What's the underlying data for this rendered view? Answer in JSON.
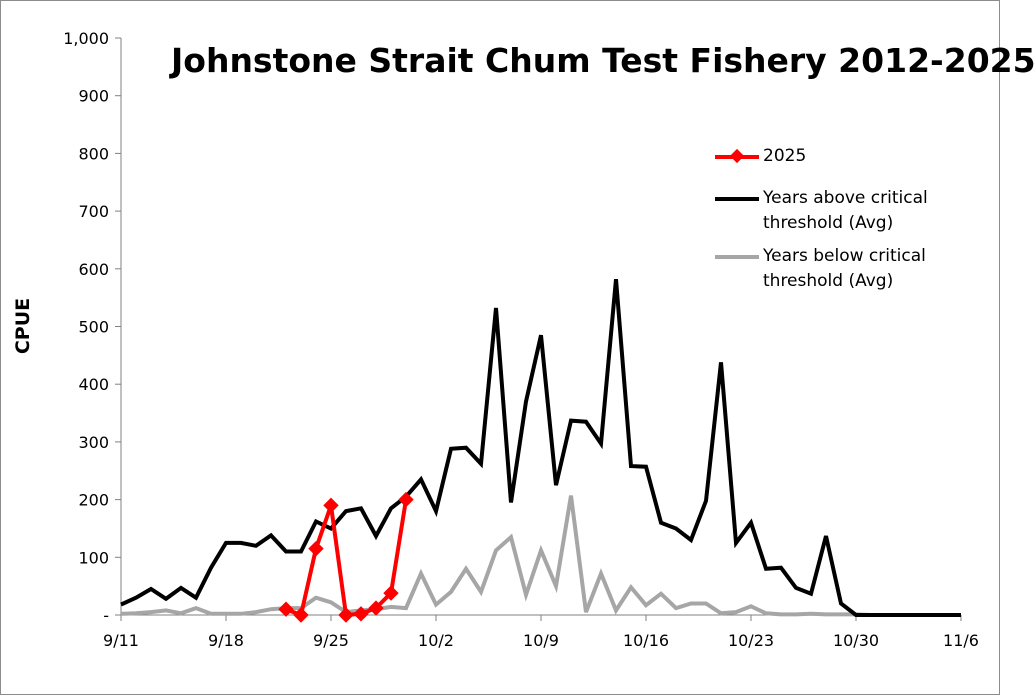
{
  "chart_data": {
    "type": "line",
    "title": "Johnstone Strait Chum Test Fishery 2012-2025",
    "ylabel": "CPUE",
    "xlabel": "",
    "ylim": [
      0,
      1000
    ],
    "y_ticks": [
      "-",
      "100",
      "200",
      "300",
      "400",
      "500",
      "600",
      "700",
      "800",
      "900",
      "1,000"
    ],
    "x_ticks": [
      "9/11",
      "9/18",
      "9/25",
      "10/2",
      "10/9",
      "10/16",
      "10/23",
      "10/30",
      "11/6"
    ],
    "x_axis_start": "9/11",
    "x_axis_end": "11/6",
    "legend_position": "right",
    "series": [
      {
        "name": "2025",
        "color": "#ff0000",
        "marker": "diamond",
        "points": [
          [
            "9/22",
            10
          ],
          [
            "9/23",
            0
          ],
          [
            "9/24",
            115
          ],
          [
            "9/25",
            190
          ],
          [
            "9/26",
            0
          ],
          [
            "9/27",
            2
          ],
          [
            "9/28",
            12
          ],
          [
            "9/29",
            38
          ],
          [
            "9/30",
            200
          ]
        ]
      },
      {
        "name": "Years above critical threshold (Avg)",
        "color": "#000000",
        "marker": "none",
        "points": [
          [
            "9/11",
            18
          ],
          [
            "9/12",
            30
          ],
          [
            "9/13",
            45
          ],
          [
            "9/14",
            28
          ],
          [
            "9/15",
            47
          ],
          [
            "9/16",
            30
          ],
          [
            "9/17",
            82
          ],
          [
            "9/18",
            125
          ],
          [
            "9/19",
            125
          ],
          [
            "9/20",
            120
          ],
          [
            "9/21",
            138
          ],
          [
            "9/22",
            110
          ],
          [
            "9/23",
            110
          ],
          [
            "9/24",
            162
          ],
          [
            "9/25",
            150
          ],
          [
            "9/26",
            180
          ],
          [
            "9/27",
            185
          ],
          [
            "9/28",
            137
          ],
          [
            "9/29",
            185
          ],
          [
            "9/30",
            205
          ],
          [
            "10/1",
            235
          ],
          [
            "10/2",
            180
          ],
          [
            "10/3",
            288
          ],
          [
            "10/4",
            290
          ],
          [
            "10/5",
            262
          ],
          [
            "10/6",
            532
          ],
          [
            "10/7",
            195
          ],
          [
            "10/8",
            370
          ],
          [
            "10/9",
            485
          ],
          [
            "10/10",
            225
          ],
          [
            "10/11",
            337
          ],
          [
            "10/12",
            335
          ],
          [
            "10/13",
            297
          ],
          [
            "10/14",
            582
          ],
          [
            "10/15",
            258
          ],
          [
            "10/16",
            257
          ],
          [
            "10/17",
            160
          ],
          [
            "10/18",
            150
          ],
          [
            "10/19",
            130
          ],
          [
            "10/20",
            198
          ],
          [
            "10/21",
            438
          ],
          [
            "10/22",
            125
          ],
          [
            "10/23",
            160
          ],
          [
            "10/24",
            80
          ],
          [
            "10/25",
            82
          ],
          [
            "10/26",
            47
          ],
          [
            "10/27",
            37
          ],
          [
            "10/28",
            137
          ],
          [
            "10/29",
            20
          ],
          [
            "10/30",
            0
          ],
          [
            "10/31",
            0
          ],
          [
            "11/1",
            0
          ],
          [
            "11/2",
            0
          ],
          [
            "11/3",
            0
          ],
          [
            "11/4",
            0
          ],
          [
            "11/5",
            0
          ],
          [
            "11/6",
            0
          ]
        ]
      },
      {
        "name": "Years below critical threshold (Avg)",
        "color": "#a6a6a6",
        "marker": "none",
        "points": [
          [
            "9/11",
            2
          ],
          [
            "9/12",
            3
          ],
          [
            "9/13",
            5
          ],
          [
            "9/14",
            8
          ],
          [
            "9/15",
            3
          ],
          [
            "9/16",
            12
          ],
          [
            "9/17",
            2
          ],
          [
            "9/18",
            2
          ],
          [
            "9/19",
            2
          ],
          [
            "9/20",
            5
          ],
          [
            "9/21",
            10
          ],
          [
            "9/22",
            12
          ],
          [
            "9/23",
            12
          ],
          [
            "9/24",
            30
          ],
          [
            "9/25",
            22
          ],
          [
            "9/26",
            5
          ],
          [
            "9/27",
            8
          ],
          [
            "9/28",
            10
          ],
          [
            "9/29",
            14
          ],
          [
            "9/30",
            12
          ],
          [
            "10/1",
            72
          ],
          [
            "10/2",
            18
          ],
          [
            "10/3",
            40
          ],
          [
            "10/4",
            80
          ],
          [
            "10/5",
            40
          ],
          [
            "10/6",
            112
          ],
          [
            "10/7",
            135
          ],
          [
            "10/8",
            35
          ],
          [
            "10/9",
            112
          ],
          [
            "10/10",
            50
          ],
          [
            "10/11",
            207
          ],
          [
            "10/12",
            5
          ],
          [
            "10/13",
            72
          ],
          [
            "10/14",
            8
          ],
          [
            "10/15",
            48
          ],
          [
            "10/16",
            17
          ],
          [
            "10/17",
            37
          ],
          [
            "10/18",
            12
          ],
          [
            "10/19",
            20
          ],
          [
            "10/20",
            20
          ],
          [
            "10/21",
            3
          ],
          [
            "10/22",
            5
          ],
          [
            "10/23",
            15
          ],
          [
            "10/24",
            3
          ],
          [
            "10/25",
            1
          ],
          [
            "10/26",
            1
          ],
          [
            "10/27",
            2
          ],
          [
            "10/28",
            1
          ],
          [
            "10/29",
            1
          ],
          [
            "10/30",
            1
          ],
          [
            "10/31",
            0
          ],
          [
            "11/1",
            0
          ],
          [
            "11/2",
            0
          ],
          [
            "11/3",
            0
          ],
          [
            "11/4",
            0
          ],
          [
            "11/5",
            0
          ],
          [
            "11/6",
            0
          ]
        ]
      }
    ]
  }
}
